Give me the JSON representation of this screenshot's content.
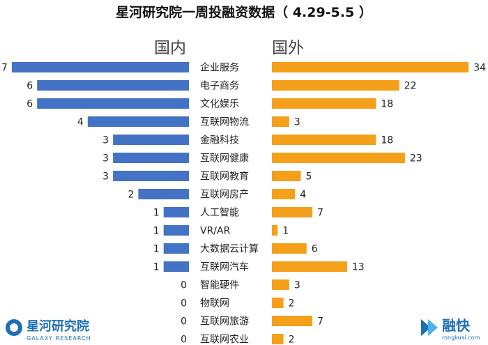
{
  "chart_data": {
    "type": "bar",
    "title": "星河研究院一周投融资数据（ 4.29-5.5 ）",
    "categories": [
      "企业服务",
      "电子商务",
      "文化娱乐",
      "互联网物流",
      "金融科技",
      "互联网健康",
      "互联网教育",
      "互联网房产",
      "人工智能",
      "VR/AR",
      "大数据云计算",
      "互联网汽车",
      "智能硬件",
      "物联网",
      "互联网旅游",
      "互联网农业"
    ],
    "series": [
      {
        "name": "国内",
        "color": "#4472c4",
        "values": [
          7,
          6,
          6,
          4,
          3,
          3,
          3,
          2,
          1,
          1,
          1,
          1,
          0,
          0,
          0,
          0
        ]
      },
      {
        "name": "国外",
        "color": "#f5a01a",
        "values": [
          34,
          22,
          18,
          3,
          18,
          23,
          5,
          4,
          7,
          1,
          6,
          13,
          3,
          2,
          7,
          2
        ]
      }
    ],
    "legend": "top"
  },
  "logos": {
    "left_main": "星河研究院",
    "left_sub": "GALAXY RESEARCH",
    "right_main": "融快",
    "right_sub": "rongkuai.com"
  }
}
